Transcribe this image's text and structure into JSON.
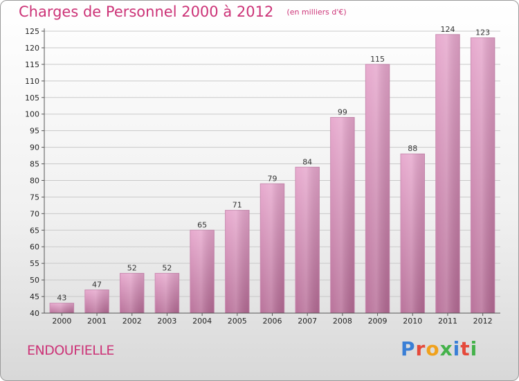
{
  "title": "Charges de Personnel 2000 à 2012",
  "subtitle": "(en milliers d'€)",
  "commune": "ENDOUFIELLE",
  "logo": {
    "letters": [
      "P",
      "r",
      "o",
      "x",
      "i",
      "t",
      "i"
    ]
  },
  "chart_data": {
    "type": "bar",
    "categories": [
      "2000",
      "2001",
      "2002",
      "2003",
      "2004",
      "2005",
      "2006",
      "2007",
      "2008",
      "2009",
      "2010",
      "2011",
      "2012"
    ],
    "values": [
      43,
      47,
      52,
      52,
      65,
      71,
      79,
      84,
      99,
      115,
      88,
      124,
      123
    ],
    "ylim": [
      40,
      125
    ],
    "yticks": [
      40,
      45,
      50,
      55,
      60,
      65,
      70,
      75,
      80,
      85,
      90,
      95,
      100,
      105,
      110,
      115,
      120,
      125
    ],
    "grid": true,
    "bar_color": "#d98bb8"
  }
}
